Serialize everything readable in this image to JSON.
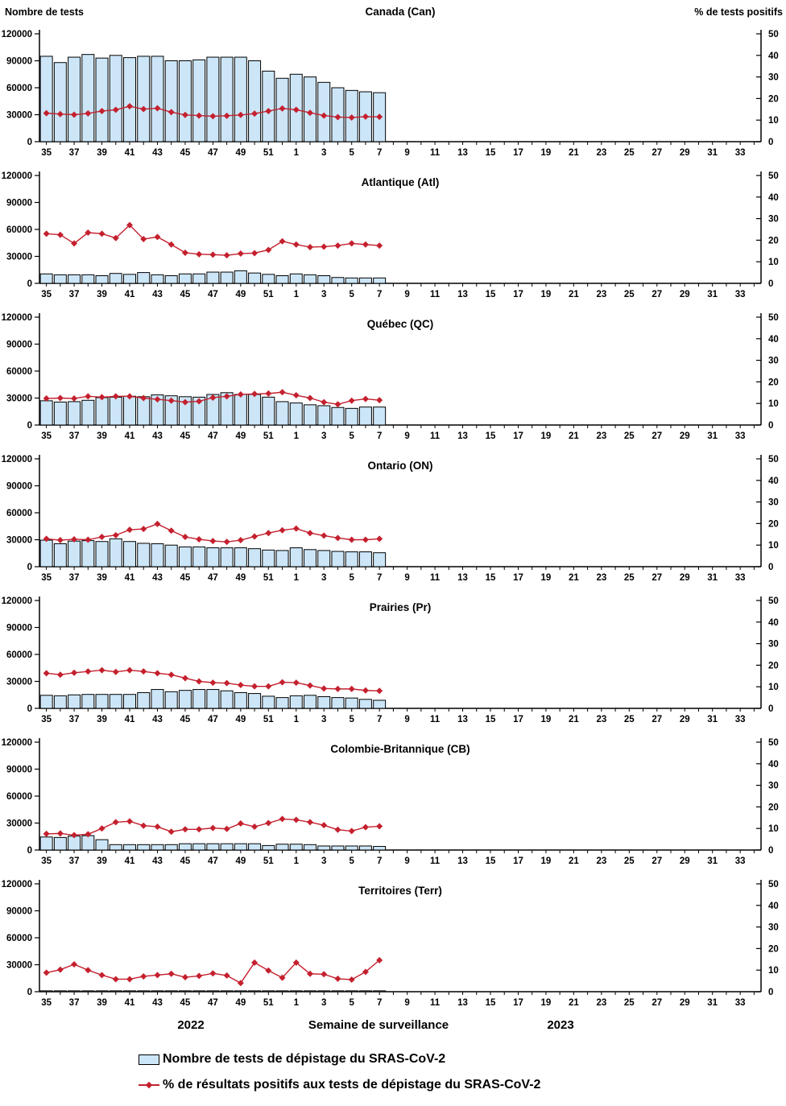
{
  "axes": {
    "left_title": "Nombre de tests",
    "right_title": "% de tests positifs"
  },
  "x_axis": {
    "title": "Semaine de surveillance",
    "year_left": "2022",
    "year_right": "2023"
  },
  "legend": {
    "tests_label": "Nombre de tests de dépistage du SRAS-CoV-2",
    "positivity_label": "% de résultats positifs aux tests de dépistage du SRAS-CoV-2"
  },
  "colors": {
    "bar_fill": "#CCE6F8",
    "bar_stroke": "#000000",
    "line": "#C4202E",
    "axis": "#000000",
    "text": "#000000"
  },
  "chart_data": {
    "type": "bar+line",
    "subplots": "7 stacked panels sharing identical axes",
    "ylim_left": [
      0,
      120000
    ],
    "yticks_left": [
      0,
      30000,
      60000,
      90000,
      120000
    ],
    "ylabel_left": "Nombre de tests",
    "ylim_right": [
      0,
      50
    ],
    "yticks_right": [
      0,
      10,
      20,
      30,
      40,
      50
    ],
    "ylabel_right": "% de tests positifs",
    "xlabel": "Semaine de surveillance",
    "x_axis_weeks_2022": [
      35,
      52
    ],
    "x_axis_weeks_2023": [
      1,
      34
    ],
    "x_tick_labels": [
      "35",
      "37",
      "39",
      "41",
      "43",
      "45",
      "47",
      "49",
      "51",
      "1",
      "3",
      "5",
      "7",
      "9",
      "11",
      "13",
      "15",
      "17",
      "19",
      "21",
      "23",
      "25",
      "27",
      "29",
      "31",
      "33"
    ],
    "x_weeks_with_data": [
      35,
      36,
      37,
      38,
      39,
      40,
      41,
      42,
      43,
      44,
      45,
      46,
      47,
      48,
      49,
      50,
      51,
      52,
      1,
      2,
      3,
      4,
      5,
      6,
      7
    ],
    "grid": false,
    "legend_position": "bottom-left",
    "panels": [
      {
        "title": "Canada (Can)",
        "tests": [
          95000,
          88000,
          94000,
          97000,
          93000,
          96000,
          93500,
          95000,
          95000,
          90000,
          90000,
          91000,
          94000,
          94000,
          94000,
          90000,
          78500,
          70500,
          75000,
          72000,
          66000,
          60000,
          57000,
          55500,
          54500
        ],
        "pct_positifs": [
          13.2,
          12.8,
          12.5,
          13.1,
          14.2,
          14.8,
          16.4,
          15.1,
          15.5,
          13.7,
          12.4,
          12.1,
          11.8,
          12.0,
          12.4,
          13.0,
          14.2,
          15.4,
          14.8,
          13.4,
          12.1,
          11.4,
          11.2,
          11.6,
          11.5
        ]
      },
      {
        "title": "Atlantique (Atl)",
        "tests": [
          10500,
          9500,
          9500,
          9500,
          8500,
          11000,
          10000,
          12000,
          9500,
          8500,
          10500,
          10500,
          12500,
          12500,
          14000,
          11500,
          10000,
          8500,
          10500,
          9500,
          8500,
          6500,
          6000,
          6000,
          6000
        ],
        "pct_positifs": [
          23.0,
          22.5,
          18.5,
          23.5,
          23.0,
          21.0,
          27.0,
          20.5,
          21.5,
          18.0,
          14.2,
          13.5,
          13.3,
          13.0,
          13.8,
          14.0,
          15.5,
          19.5,
          18.0,
          16.8,
          17.0,
          17.5,
          18.5,
          18.0,
          17.5
        ]
      },
      {
        "title": "Québec (QC)",
        "tests": [
          27000,
          25500,
          26000,
          27500,
          30500,
          31000,
          32000,
          31500,
          33500,
          32500,
          31500,
          31000,
          34000,
          36000,
          34000,
          34000,
          31000,
          26000,
          24500,
          22500,
          21500,
          19500,
          18500,
          20000,
          20000
        ],
        "pct_positifs": [
          12.3,
          12.5,
          12.3,
          13.3,
          12.9,
          13.3,
          13.3,
          12.5,
          11.9,
          11.3,
          10.6,
          11.0,
          12.7,
          13.3,
          14.2,
          14.4,
          14.6,
          15.2,
          13.8,
          12.5,
          10.6,
          9.6,
          11.3,
          12.1,
          11.5
        ]
      },
      {
        "title": "Ontario (ON)",
        "tests": [
          29500,
          25500,
          28500,
          29000,
          28000,
          31000,
          28000,
          26000,
          25500,
          24000,
          22000,
          22000,
          21000,
          21000,
          21000,
          20000,
          18500,
          18000,
          21000,
          19000,
          18000,
          17000,
          16500,
          16500,
          15500
        ],
        "pct_positifs": [
          12.9,
          12.3,
          12.7,
          12.5,
          13.8,
          14.6,
          17.1,
          17.5,
          19.8,
          16.7,
          13.8,
          12.7,
          11.9,
          11.5,
          12.3,
          14.0,
          15.6,
          16.9,
          17.7,
          15.6,
          14.4,
          13.3,
          12.5,
          12.5,
          12.9
        ]
      },
      {
        "title": "Prairies (Pr)",
        "tests": [
          14500,
          14000,
          15000,
          15500,
          15500,
          15500,
          15500,
          17500,
          21000,
          18500,
          20000,
          21000,
          21000,
          19500,
          17500,
          16500,
          13500,
          12000,
          14000,
          14500,
          13000,
          12000,
          11500,
          10000,
          9000
        ],
        "pct_positifs": [
          16.3,
          15.6,
          16.5,
          17.1,
          17.7,
          16.9,
          17.7,
          17.1,
          16.3,
          15.6,
          14.0,
          12.5,
          11.9,
          11.7,
          10.8,
          10.2,
          10.2,
          12.1,
          11.9,
          10.6,
          9.2,
          9.0,
          9.0,
          8.3,
          8.1
        ]
      },
      {
        "title": "Colombie-Britannique (CB)",
        "tests": [
          14500,
          14000,
          15500,
          16000,
          11500,
          6000,
          6000,
          6000,
          6000,
          6000,
          7000,
          7000,
          7000,
          7000,
          7000,
          7000,
          5000,
          6500,
          6500,
          6000,
          4500,
          4500,
          4500,
          4500,
          4000
        ],
        "pct_positifs": [
          7.5,
          7.7,
          6.9,
          7.3,
          10.0,
          12.9,
          13.3,
          11.3,
          10.8,
          8.5,
          9.6,
          9.6,
          10.2,
          9.8,
          12.3,
          10.8,
          12.5,
          14.4,
          14.0,
          12.9,
          11.5,
          9.4,
          8.8,
          10.6,
          11.0
        ]
      },
      {
        "title": "Territoires (Terr)",
        "tests": [
          1000,
          1000,
          1000,
          1000,
          1000,
          1000,
          1000,
          1000,
          1000,
          1000,
          1000,
          1000,
          1000,
          1000,
          1000,
          1000,
          1000,
          1000,
          1000,
          1000,
          1000,
          1000,
          1000,
          1000,
          1000
        ],
        "pct_positifs": [
          8.8,
          10.2,
          12.7,
          10.0,
          7.7,
          5.8,
          5.8,
          7.1,
          7.7,
          8.3,
          6.7,
          7.3,
          8.5,
          7.5,
          4.0,
          13.5,
          9.8,
          6.5,
          13.5,
          8.3,
          8.1,
          6.0,
          5.6,
          9.2,
          14.6
        ]
      }
    ]
  }
}
